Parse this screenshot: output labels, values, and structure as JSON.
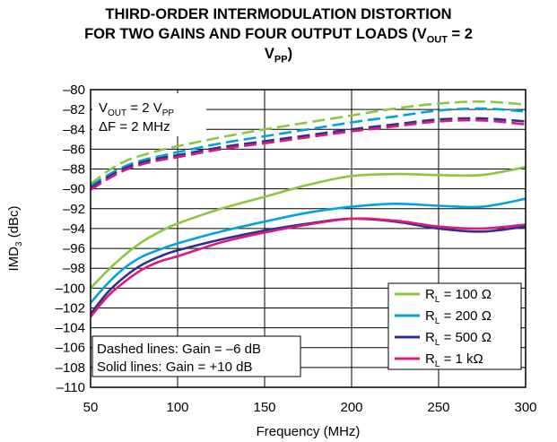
{
  "chart_data": {
    "type": "line",
    "title_line1": "THIRD-ORDER INTERMODULATION DISTORTION",
    "title_line2_pre": "FOR TWO GAINS AND FOUR OUTPUT LOADS (V",
    "title_line2_sub": "OUT",
    "title_line2_post": " = 2",
    "title_line3_main": "V",
    "title_line3_sub": "PP",
    "title_line3_post": ")",
    "xlabel": "Frequency (MHz)",
    "ylabel_main": "IMD",
    "ylabel_sub": "3",
    "ylabel_post": " (dBc)",
    "xlim": [
      50,
      300
    ],
    "ylim": [
      -110,
      -80
    ],
    "x_ticks": [
      50,
      100,
      150,
      200,
      250,
      300
    ],
    "y_ticks": [
      -80,
      -82,
      -84,
      -86,
      -88,
      -90,
      -92,
      -94,
      -96,
      -98,
      -100,
      -102,
      -104,
      -106,
      -108,
      -110
    ],
    "y_tick_labels": [
      "–80",
      "–82",
      "–84",
      "–86",
      "–88",
      "–90",
      "–92",
      "–94",
      "–96",
      "–98",
      "–100",
      "–102",
      "–104",
      "–106",
      "–108",
      "–110"
    ],
    "grid": true,
    "annotation_top": {
      "line1_main": "V",
      "line1_sub": "OUT",
      "line1_post": " = 2 V",
      "line1_sub2": "PP",
      "line2": "ΔF = 2 MHz"
    },
    "annotation_bottom": {
      "line1": "Dashed lines: Gain = –6 dB",
      "line2": "Solid lines: Gain = +10 dB"
    },
    "legend_placement": "bottom-right",
    "legend": [
      {
        "main": "R",
        "sub": "L",
        "post": " = 100 Ω",
        "color": "#8dc63f"
      },
      {
        "main": "R",
        "sub": "L",
        "post": " = 200 Ω",
        "color": "#00a3e0"
      },
      {
        "main": "R",
        "sub": "L",
        "post": " = 500 Ω",
        "color": "#2e3192"
      },
      {
        "main": "R",
        "sub": "L",
        "post": " = 1 kΩ",
        "color": "#e0197d"
      }
    ],
    "series": [
      {
        "style": "solid",
        "color": "#8dc63f",
        "x": [
          50,
          60,
          70,
          80,
          90,
          100,
          125,
          150,
          175,
          200,
          225,
          250,
          275,
          300
        ],
        "y": [
          -100,
          -98.2,
          -96.6,
          -95.3,
          -94.3,
          -93.5,
          -92,
          -90.8,
          -89.6,
          -88.7,
          -88.5,
          -88.6,
          -88.6,
          -87.8
        ]
      },
      {
        "style": "solid",
        "color": "#00a3e0",
        "x": [
          50,
          60,
          70,
          80,
          90,
          100,
          125,
          150,
          175,
          200,
          225,
          250,
          275,
          300
        ],
        "y": [
          -101.5,
          -99.5,
          -97.9,
          -96.8,
          -96.1,
          -95.5,
          -94.3,
          -93.3,
          -92.4,
          -91.8,
          -91.5,
          -91.7,
          -91.8,
          -91
        ]
      },
      {
        "style": "solid",
        "color": "#2e3192",
        "x": [
          50,
          60,
          70,
          80,
          90,
          100,
          125,
          150,
          175,
          200,
          225,
          250,
          275,
          300
        ],
        "y": [
          -102.6,
          -100.4,
          -98.8,
          -97.6,
          -96.8,
          -96.2,
          -95.1,
          -94.2,
          -93.5,
          -93,
          -93.3,
          -94,
          -94.3,
          -93.8
        ]
      },
      {
        "style": "solid",
        "color": "#e0197d",
        "x": [
          50,
          60,
          70,
          80,
          90,
          100,
          125,
          150,
          175,
          200,
          225,
          250,
          275,
          300
        ],
        "y": [
          -102.9,
          -100.8,
          -99.3,
          -98.1,
          -97.3,
          -96.8,
          -95.4,
          -94.4,
          -93.6,
          -93,
          -93.2,
          -93.8,
          -94,
          -93.6
        ]
      },
      {
        "style": "dashed",
        "color": "#8dc63f",
        "x": [
          50,
          60,
          70,
          80,
          90,
          100,
          125,
          150,
          175,
          200,
          225,
          250,
          275,
          300
        ],
        "y": [
          -89.5,
          -88.2,
          -87.2,
          -86.6,
          -86.1,
          -85.7,
          -84.8,
          -84,
          -83.3,
          -82.6,
          -81.9,
          -81.4,
          -81.2,
          -81.5
        ]
      },
      {
        "style": "dashed",
        "color": "#00a3e0",
        "x": [
          50,
          60,
          70,
          80,
          90,
          100,
          125,
          150,
          175,
          200,
          225,
          250,
          275,
          300
        ],
        "y": [
          -89.7,
          -88.6,
          -87.7,
          -87.1,
          -86.7,
          -86.3,
          -85.4,
          -84.7,
          -84,
          -83.3,
          -82.7,
          -82.1,
          -81.9,
          -82.2
        ]
      },
      {
        "style": "dashed",
        "color": "#2e3192",
        "x": [
          50,
          60,
          70,
          80,
          90,
          100,
          125,
          150,
          175,
          200,
          225,
          250,
          275,
          300
        ],
        "y": [
          -89.9,
          -88.8,
          -87.9,
          -87.3,
          -86.9,
          -86.6,
          -85.8,
          -85.2,
          -84.6,
          -84,
          -83.5,
          -83,
          -82.9,
          -83.2
        ]
      },
      {
        "style": "dashed",
        "color": "#e0197d",
        "x": [
          50,
          60,
          70,
          80,
          90,
          100,
          125,
          150,
          175,
          200,
          225,
          250,
          275,
          300
        ],
        "y": [
          -90.1,
          -89,
          -88.1,
          -87.5,
          -87.1,
          -86.8,
          -86,
          -85.4,
          -84.8,
          -84.2,
          -83.7,
          -83.2,
          -83.1,
          -83.5
        ]
      }
    ]
  }
}
